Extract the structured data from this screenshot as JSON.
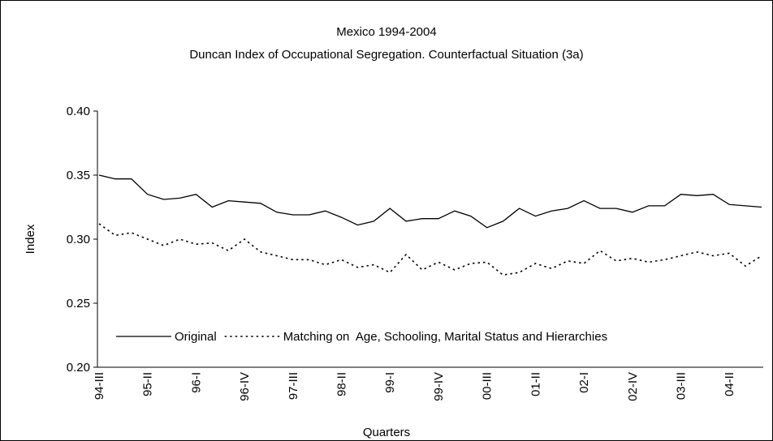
{
  "chart_data": {
    "type": "line",
    "title": "Mexico 1994-2004",
    "subtitle": "Duncan Index of Occupational Segregation. Counterfactual Situation (3a)",
    "x_label": "Quarters",
    "y_label": "Index",
    "categories": [
      "94-III",
      null,
      null,
      "95-II",
      null,
      null,
      "96-I",
      null,
      null,
      "96-IV",
      null,
      null,
      "97-III",
      null,
      null,
      "98-II",
      null,
      null,
      "99-I",
      null,
      null,
      "99-IV",
      null,
      null,
      "00-III",
      null,
      null,
      "01-II",
      null,
      null,
      "02-I",
      null,
      null,
      "02-IV",
      null,
      null,
      "03-III",
      null,
      null,
      "04-II",
      null,
      null
    ],
    "series": [
      {
        "name": "Original",
        "color": "#000000",
        "dash": "solid",
        "values": [
          0.35,
          0.347,
          0.347,
          0.335,
          0.331,
          0.332,
          0.335,
          0.325,
          0.33,
          0.329,
          0.328,
          0.321,
          0.319,
          0.319,
          0.322,
          0.317,
          0.311,
          0.314,
          0.324,
          0.314,
          0.316,
          0.316,
          0.322,
          0.318,
          0.309,
          0.314,
          0.324,
          0.318,
          0.322,
          0.324,
          0.33,
          0.324,
          0.324,
          0.321,
          0.326,
          0.326,
          0.335,
          0.334,
          0.335,
          0.327,
          0.326,
          0.325
        ]
      },
      {
        "name": "Matching on  Age, Schooling, Marital Status and Hierarchies",
        "color": "#000000",
        "dash": "dotted",
        "values": [
          0.312,
          0.303,
          0.305,
          0.3,
          0.295,
          0.3,
          0.296,
          0.297,
          0.291,
          0.3,
          0.29,
          0.287,
          0.284,
          0.284,
          0.28,
          0.284,
          0.278,
          0.28,
          0.274,
          0.288,
          0.276,
          0.282,
          0.276,
          0.281,
          0.282,
          0.272,
          0.274,
          0.281,
          0.277,
          0.283,
          0.281,
          0.291,
          0.283,
          0.285,
          0.282,
          0.284,
          0.287,
          0.29,
          0.287,
          0.289,
          0.279,
          0.287
        ]
      }
    ],
    "ylim": [
      0.2,
      0.4
    ],
    "yticks": [
      {
        "value": 0.2,
        "label": "0.20"
      },
      0.25,
      {
        "value": 0.3,
        "label": "0.30"
      },
      0.35,
      {
        "value": 0.4,
        "label": "0.40"
      }
    ],
    "grid": false,
    "legend": "bottom"
  }
}
